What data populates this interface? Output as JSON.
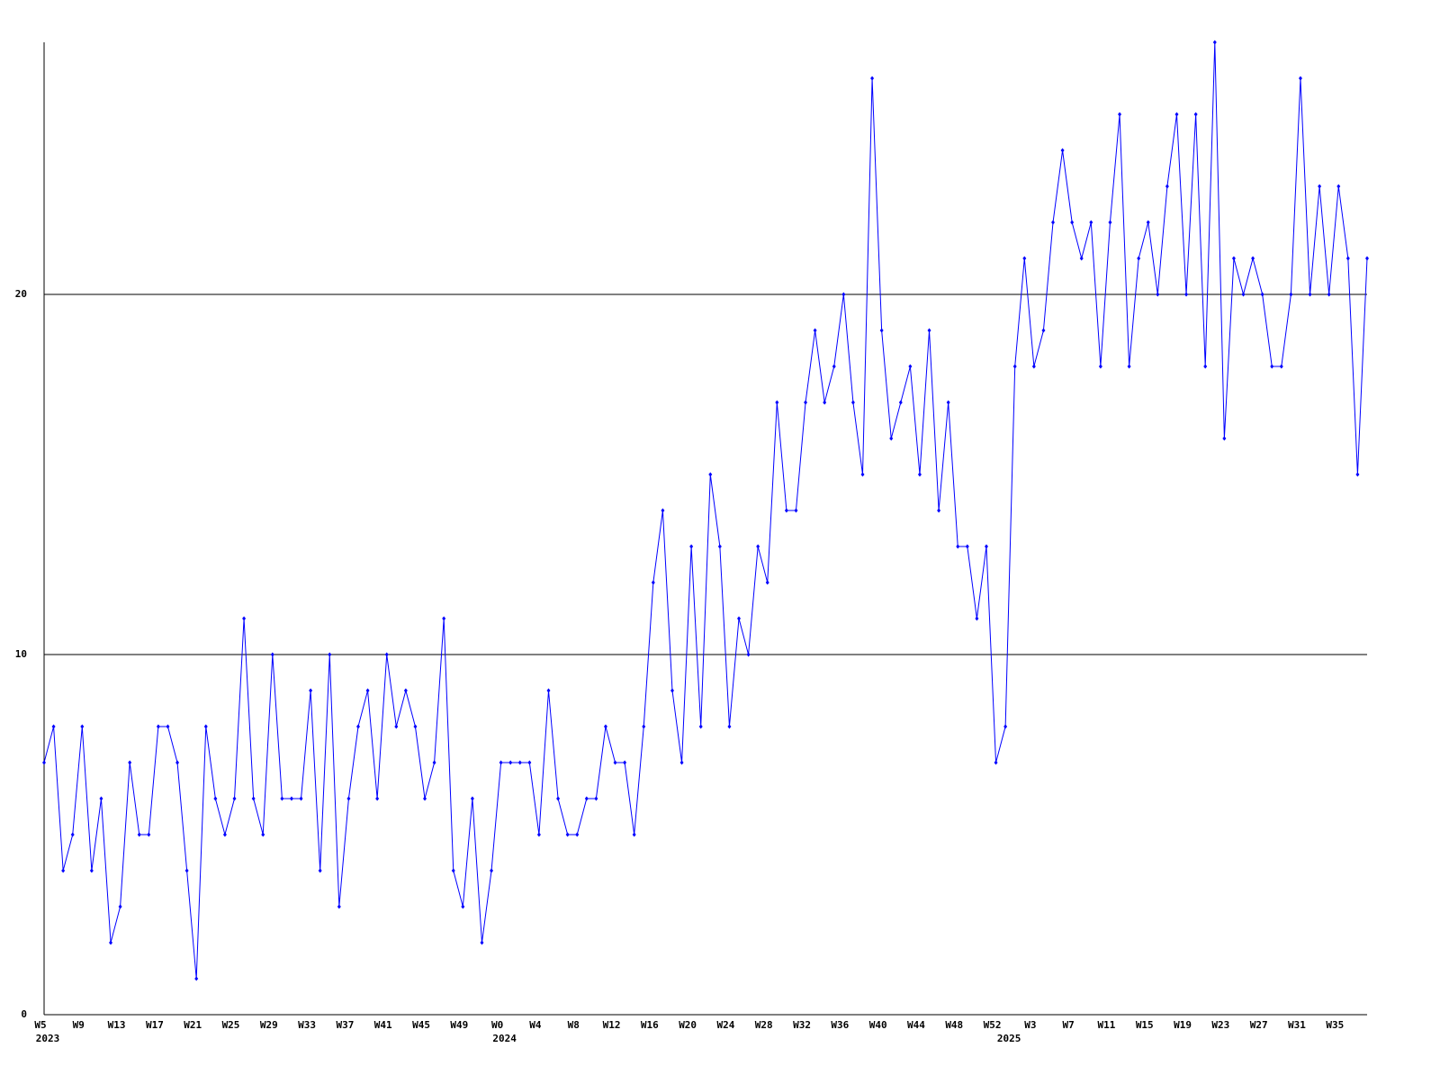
{
  "chart_data": {
    "type": "line",
    "categories": [
      "W5",
      null,
      null,
      null,
      "W9",
      null,
      null,
      null,
      "W13",
      null,
      null,
      null,
      "W17",
      null,
      null,
      null,
      "W21",
      null,
      null,
      null,
      "W25",
      null,
      null,
      null,
      "W29",
      null,
      null,
      null,
      "W33",
      null,
      null,
      null,
      "W37",
      null,
      null,
      null,
      "W41",
      null,
      null,
      null,
      "W45",
      null,
      null,
      null,
      "W49",
      null,
      null,
      null,
      "W0",
      null,
      null,
      null,
      "W4",
      null,
      null,
      null,
      "W8",
      null,
      null,
      null,
      "W12",
      null,
      null,
      null,
      "W16",
      null,
      null,
      null,
      "W20",
      null,
      null,
      null,
      "W24",
      null,
      null,
      null,
      "W28",
      null,
      null,
      null,
      "W32",
      null,
      null,
      null,
      "W36",
      null,
      null,
      null,
      "W40",
      null,
      null,
      null,
      "W44",
      null,
      null,
      null,
      "W48",
      null,
      null,
      null,
      "W52",
      null,
      null,
      null,
      "W3",
      null,
      null,
      null,
      "W7",
      null,
      null,
      null,
      "W11",
      null,
      null,
      null,
      "W15",
      null,
      null,
      null,
      "W19",
      null,
      null,
      null,
      "W23",
      null,
      null,
      null,
      "W27",
      null,
      null,
      null,
      "W31",
      null,
      null,
      null,
      "W35",
      null,
      null,
      null
    ],
    "year_labels": [
      "2023",
      null,
      null,
      null,
      null,
      null,
      null,
      null,
      null,
      null,
      null,
      null,
      null,
      null,
      null,
      null,
      null,
      null,
      null,
      null,
      null,
      null,
      null,
      null,
      null,
      null,
      null,
      null,
      null,
      null,
      null,
      null,
      null,
      null,
      null,
      null,
      null,
      null,
      null,
      null,
      null,
      null,
      null,
      null,
      null,
      null,
      null,
      null,
      "2024",
      null,
      null,
      null,
      null,
      null,
      null,
      null,
      null,
      null,
      null,
      null,
      null,
      null,
      null,
      null,
      null,
      null,
      null,
      null,
      null,
      null,
      null,
      null,
      null,
      null,
      null,
      null,
      null,
      null,
      null,
      null,
      null,
      null,
      null,
      null,
      null,
      null,
      null,
      null,
      null,
      null,
      null,
      null,
      null,
      null,
      null,
      null,
      null,
      null,
      null,
      null,
      null,
      "2025",
      null,
      null,
      null,
      null,
      null,
      null,
      null,
      null,
      null,
      null,
      null,
      null,
      null,
      null,
      null,
      null,
      null,
      null,
      null,
      null,
      null,
      null,
      null,
      null,
      null,
      null,
      null,
      null,
      null,
      null,
      null,
      null,
      null,
      null,
      null,
      null,
      null,
      null
    ],
    "series": [
      {
        "color": "#0000ff",
        "values": [
          7,
          8,
          4,
          5,
          8,
          4,
          6,
          2,
          3,
          7,
          5,
          5,
          8,
          8,
          7,
          4,
          1,
          8,
          6,
          5,
          6,
          11,
          6,
          5,
          10,
          6,
          6,
          6,
          9,
          4,
          10,
          3,
          6,
          8,
          9,
          6,
          10,
          8,
          9,
          8,
          6,
          7,
          11,
          4,
          3,
          6,
          2,
          4,
          7,
          7,
          7,
          7,
          5,
          9,
          6,
          5,
          5,
          6,
          6,
          8,
          7,
          7,
          5,
          8,
          12,
          14,
          9,
          7,
          13,
          8,
          15,
          13,
          8,
          11,
          10,
          13,
          12,
          17,
          14,
          14,
          17,
          19,
          17,
          18,
          20,
          17,
          15,
          26,
          19,
          16,
          17,
          18,
          15,
          19,
          14,
          17,
          13,
          13,
          11,
          13,
          7,
          8,
          18,
          21,
          18,
          19,
          22,
          24,
          22,
          21,
          22,
          18,
          22,
          25,
          18,
          21,
          22,
          20,
          23,
          25,
          20,
          25,
          18,
          27,
          16,
          21,
          20,
          21,
          20,
          18,
          18,
          20,
          26,
          20,
          23,
          20,
          23,
          21,
          15,
          21
        ]
      }
    ],
    "ylim": [
      0,
      27
    ],
    "yticks": [
      0,
      10,
      20
    ],
    "grid": true
  }
}
